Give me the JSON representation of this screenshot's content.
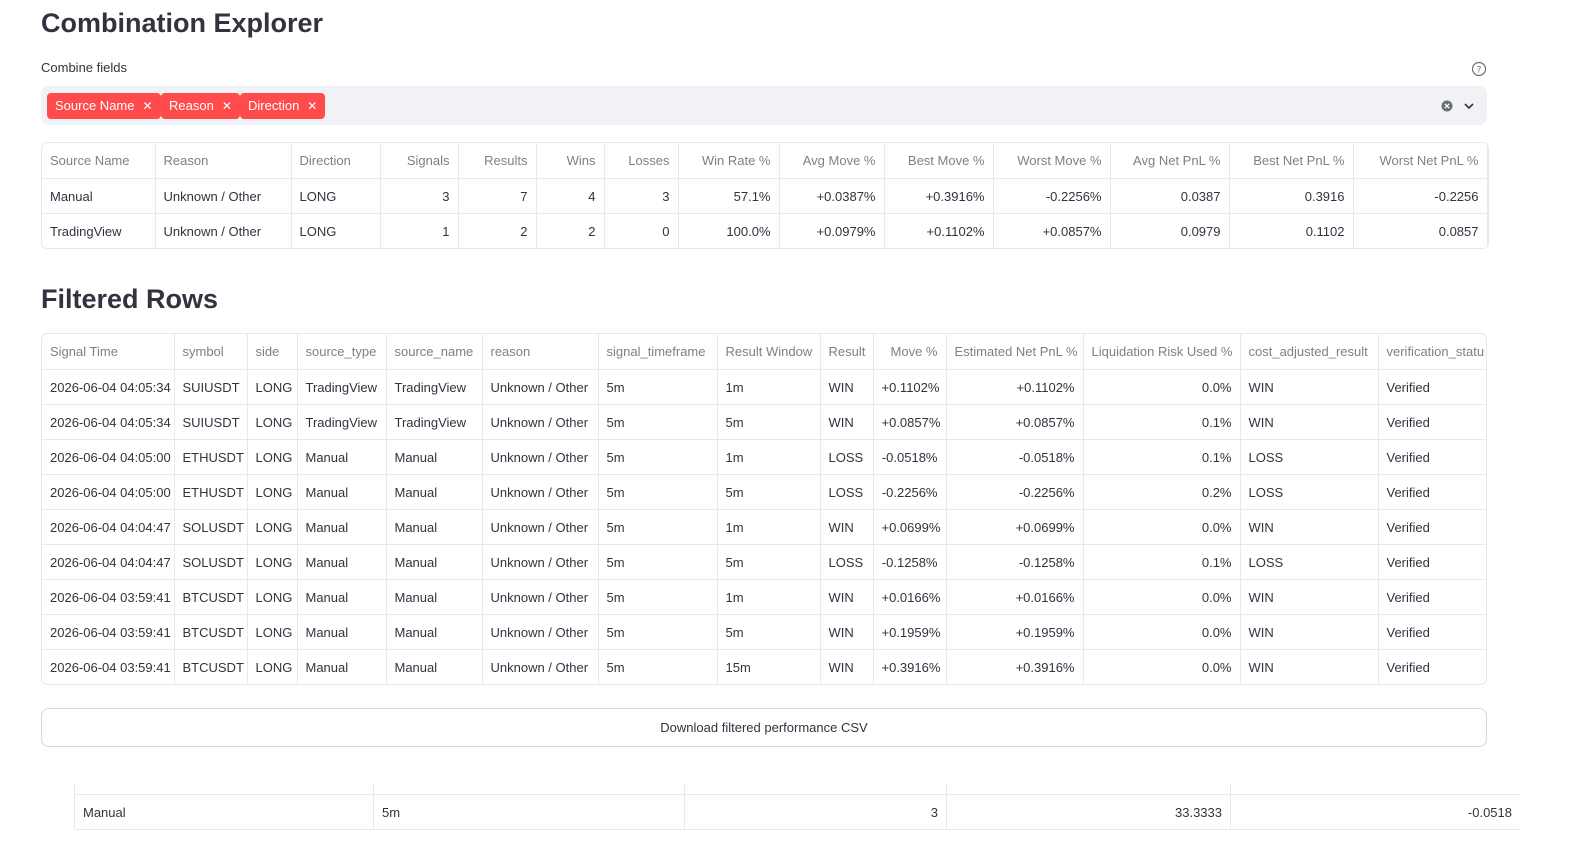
{
  "header": {
    "title": "Combination Explorer"
  },
  "multiselect": {
    "label": "Combine fields",
    "tags": [
      "Source Name",
      "Reason",
      "Direction"
    ]
  },
  "combo_table": {
    "columns": [
      "Source Name",
      "Reason",
      "Direction",
      "Signals",
      "Results",
      "Wins",
      "Losses",
      "Win Rate %",
      "Avg Move %",
      "Best Move %",
      "Worst Move %",
      "Avg Net PnL %",
      "Best Net PnL %",
      "Worst Net PnL %"
    ],
    "rows": [
      [
        "Manual",
        "Unknown / Other",
        "LONG",
        "3",
        "7",
        "4",
        "3",
        "57.1%",
        "+0.0387%",
        "+0.3916%",
        "-0.2256%",
        "0.0387",
        "0.3916",
        "-0.2256"
      ],
      [
        "TradingView",
        "Unknown / Other",
        "LONG",
        "1",
        "2",
        "2",
        "0",
        "100.0%",
        "+0.0979%",
        "+0.1102%",
        "+0.0857%",
        "0.0979",
        "0.1102",
        "0.0857"
      ]
    ]
  },
  "filtered": {
    "title": "Filtered Rows",
    "columns": [
      "Signal Time",
      "symbol",
      "side",
      "source_type",
      "source_name",
      "reason",
      "signal_timeframe",
      "Result Window",
      "Result",
      "Move %",
      "Estimated Net PnL %",
      "Liquidation Risk Used %",
      "cost_adjusted_result",
      "verification_statu"
    ],
    "rows": [
      [
        "2026-06-04 04:05:34",
        "SUIUSDT",
        "LONG",
        "TradingView",
        "TradingView",
        "Unknown / Other",
        "5m",
        "1m",
        "WIN",
        "+0.1102%",
        "+0.1102%",
        "0.0%",
        "WIN",
        "Verified"
      ],
      [
        "2026-06-04 04:05:34",
        "SUIUSDT",
        "LONG",
        "TradingView",
        "TradingView",
        "Unknown / Other",
        "5m",
        "5m",
        "WIN",
        "+0.0857%",
        "+0.0857%",
        "0.1%",
        "WIN",
        "Verified"
      ],
      [
        "2026-06-04 04:05:00",
        "ETHUSDT",
        "LONG",
        "Manual",
        "Manual",
        "Unknown / Other",
        "5m",
        "1m",
        "LOSS",
        "-0.0518%",
        "-0.0518%",
        "0.1%",
        "LOSS",
        "Verified"
      ],
      [
        "2026-06-04 04:05:00",
        "ETHUSDT",
        "LONG",
        "Manual",
        "Manual",
        "Unknown / Other",
        "5m",
        "5m",
        "LOSS",
        "-0.2256%",
        "-0.2256%",
        "0.2%",
        "LOSS",
        "Verified"
      ],
      [
        "2026-06-04 04:04:47",
        "SOLUSDT",
        "LONG",
        "Manual",
        "Manual",
        "Unknown / Other",
        "5m",
        "1m",
        "WIN",
        "+0.0699%",
        "+0.0699%",
        "0.0%",
        "WIN",
        "Verified"
      ],
      [
        "2026-06-04 04:04:47",
        "SOLUSDT",
        "LONG",
        "Manual",
        "Manual",
        "Unknown / Other",
        "5m",
        "5m",
        "LOSS",
        "-0.1258%",
        "-0.1258%",
        "0.1%",
        "LOSS",
        "Verified"
      ],
      [
        "2026-06-04 03:59:41",
        "BTCUSDT",
        "LONG",
        "Manual",
        "Manual",
        "Unknown / Other",
        "5m",
        "1m",
        "WIN",
        "+0.0166%",
        "+0.0166%",
        "0.0%",
        "WIN",
        "Verified"
      ],
      [
        "2026-06-04 03:59:41",
        "BTCUSDT",
        "LONG",
        "Manual",
        "Manual",
        "Unknown / Other",
        "5m",
        "5m",
        "WIN",
        "+0.1959%",
        "+0.1959%",
        "0.0%",
        "WIN",
        "Verified"
      ],
      [
        "2026-06-04 03:59:41",
        "BTCUSDT",
        "LONG",
        "Manual",
        "Manual",
        "Unknown / Other",
        "5m",
        "15m",
        "WIN",
        "+0.3916%",
        "+0.3916%",
        "0.0%",
        "WIN",
        "Verified"
      ]
    ]
  },
  "download": {
    "label": "Download filtered performance CSV"
  },
  "bottom_table": {
    "rows": [
      [
        "Manual",
        "5m",
        "3",
        "33.3333",
        "-0.0518"
      ]
    ]
  }
}
